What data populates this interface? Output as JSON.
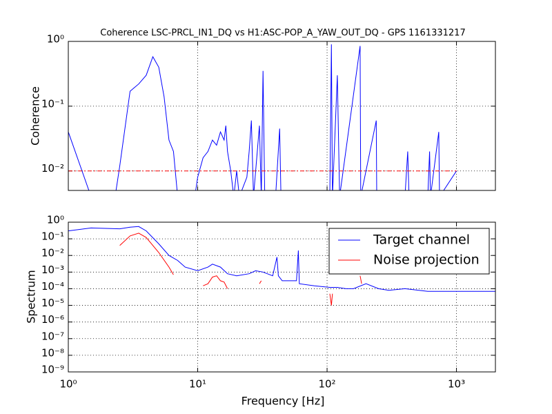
{
  "chart_data": [
    {
      "type": "line",
      "title": "Coherence LSC-PRCL_IN1_DQ vs H1:ASC-POP_A_YAW_OUT_DQ - GPS 1161331217",
      "ylabel": "Coherence",
      "xlog": true,
      "ylog": true,
      "grid": true,
      "xlim": [
        1,
        2000
      ],
      "ylim": [
        0.005,
        1
      ],
      "xticks": [
        1,
        10,
        100,
        1000
      ],
      "yticks": [
        {
          "value": 0.01,
          "label": "10⁻²"
        },
        {
          "value": 0.1,
          "label": "10⁻¹"
        },
        {
          "value": 1,
          "label": "10⁰"
        }
      ],
      "series": [
        {
          "color": "#0000ff",
          "dash": "none",
          "x": [
            1,
            1.5,
            2.3,
            2.5,
            3,
            3.5,
            4,
            4.5,
            5,
            5.5,
            6,
            6.5,
            7,
            9.5,
            10,
            11,
            12,
            13,
            14,
            15,
            16,
            16.5,
            17,
            18,
            19,
            20,
            21,
            24,
            25,
            26,
            27,
            30,
            31,
            32,
            33,
            40,
            43,
            44,
            105,
            108,
            110,
            120,
            125,
            180,
            182,
            240,
            242,
            400,
            420,
            430,
            600,
            620,
            630,
            730,
            740,
            1000
          ],
          "values": [
            0.04,
            0.004,
            0.004,
            0.012,
            0.17,
            0.22,
            0.3,
            0.58,
            0.4,
            0.14,
            0.03,
            0.02,
            0.004,
            0.004,
            0.008,
            0.016,
            0.02,
            0.03,
            0.025,
            0.04,
            0.03,
            0.05,
            0.02,
            0.01,
            0.004,
            0.01,
            0.004,
            0.008,
            0.02,
            0.06,
            0.004,
            0.05,
            0.004,
            0.35,
            0.004,
            0.004,
            0.045,
            0.004,
            0.004,
            0.9,
            0.004,
            0.3,
            0.004,
            0.85,
            0.004,
            0.06,
            0.004,
            0.004,
            0.02,
            0.004,
            0.004,
            0.02,
            0.004,
            0.04,
            0.004,
            0.01
          ]
        },
        {
          "color": "#ff0000",
          "dash": "6 3 2 3",
          "x": [
            1,
            1000
          ],
          "values": [
            0.01,
            0.01
          ]
        }
      ]
    },
    {
      "type": "line",
      "xlabel": "Frequency [Hz]",
      "ylabel": "Spectrum",
      "xlog": true,
      "ylog": true,
      "grid": true,
      "legend": "upper right",
      "xlim": [
        1,
        2000
      ],
      "ylim": [
        1e-09,
        1
      ],
      "xticks": [
        {
          "value": 1,
          "label": "10⁰"
        },
        {
          "value": 10,
          "label": "10¹"
        },
        {
          "value": 100,
          "label": "10²"
        },
        {
          "value": 1000,
          "label": "10³"
        }
      ],
      "yticks": [
        {
          "value": 1e-09,
          "label": "10⁻⁹"
        },
        {
          "value": 1e-08,
          "label": "10⁻⁸"
        },
        {
          "value": 1e-07,
          "label": "10⁻⁷"
        },
        {
          "value": 1e-06,
          "label": "10⁻⁶"
        },
        {
          "value": 1e-05,
          "label": "10⁻⁵"
        },
        {
          "value": 0.0001,
          "label": "10⁻⁴"
        },
        {
          "value": 0.001,
          "label": "10⁻³"
        },
        {
          "value": 0.01,
          "label": "10⁻²"
        },
        {
          "value": 0.1,
          "label": "10⁻¹"
        },
        {
          "value": 1,
          "label": "10⁰"
        }
      ],
      "series": [
        {
          "name": "Target channel",
          "color": "#0000ff",
          "dash": "none",
          "x": [
            1,
            1.5,
            2.5,
            3,
            3.5,
            4,
            5,
            6,
            7,
            8,
            10,
            12,
            13,
            15,
            17,
            20,
            25,
            28,
            32,
            38,
            41,
            42,
            45,
            50,
            58,
            60,
            61,
            80,
            105,
            120,
            140,
            160,
            200,
            250,
            300,
            400,
            600,
            1000,
            2000
          ],
          "values": [
            0.3,
            0.45,
            0.4,
            0.5,
            0.55,
            0.3,
            0.05,
            0.01,
            0.005,
            0.002,
            0.0012,
            0.002,
            0.003,
            0.002,
            0.0008,
            0.0006,
            0.0008,
            0.0012,
            0.001,
            0.0006,
            0.008,
            0.0006,
            0.0003,
            0.0003,
            0.0003,
            0.02,
            0.0002,
            0.00015,
            0.00012,
            0.00012,
            0.0001,
            0.0001,
            0.0002,
            0.0001,
            8e-05,
            0.0001,
            7e-05,
            7e-05,
            7e-05
          ]
        },
        {
          "name": "Noise projection",
          "color": "#ff0000",
          "dash": "none",
          "x": [
            2.5,
            3,
            3.5,
            4,
            5,
            6,
            6.5,
            8,
            11,
            12,
            13,
            14,
            15,
            16,
            17,
            25,
            30,
            31,
            60,
            105,
            108,
            110,
            150,
            180,
            185
          ],
          "values": [
            0.04,
            0.15,
            0.22,
            0.12,
            0.015,
            0.002,
            0.0007,
            null,
            0.00015,
            0.0002,
            0.0005,
            0.0006,
            0.0003,
            0.00025,
            0.0001,
            null,
            0.0002,
            0.0003,
            null,
            5e-05,
            1e-05,
            5e-05,
            null,
            0.0006,
            0.0002
          ]
        }
      ]
    }
  ]
}
